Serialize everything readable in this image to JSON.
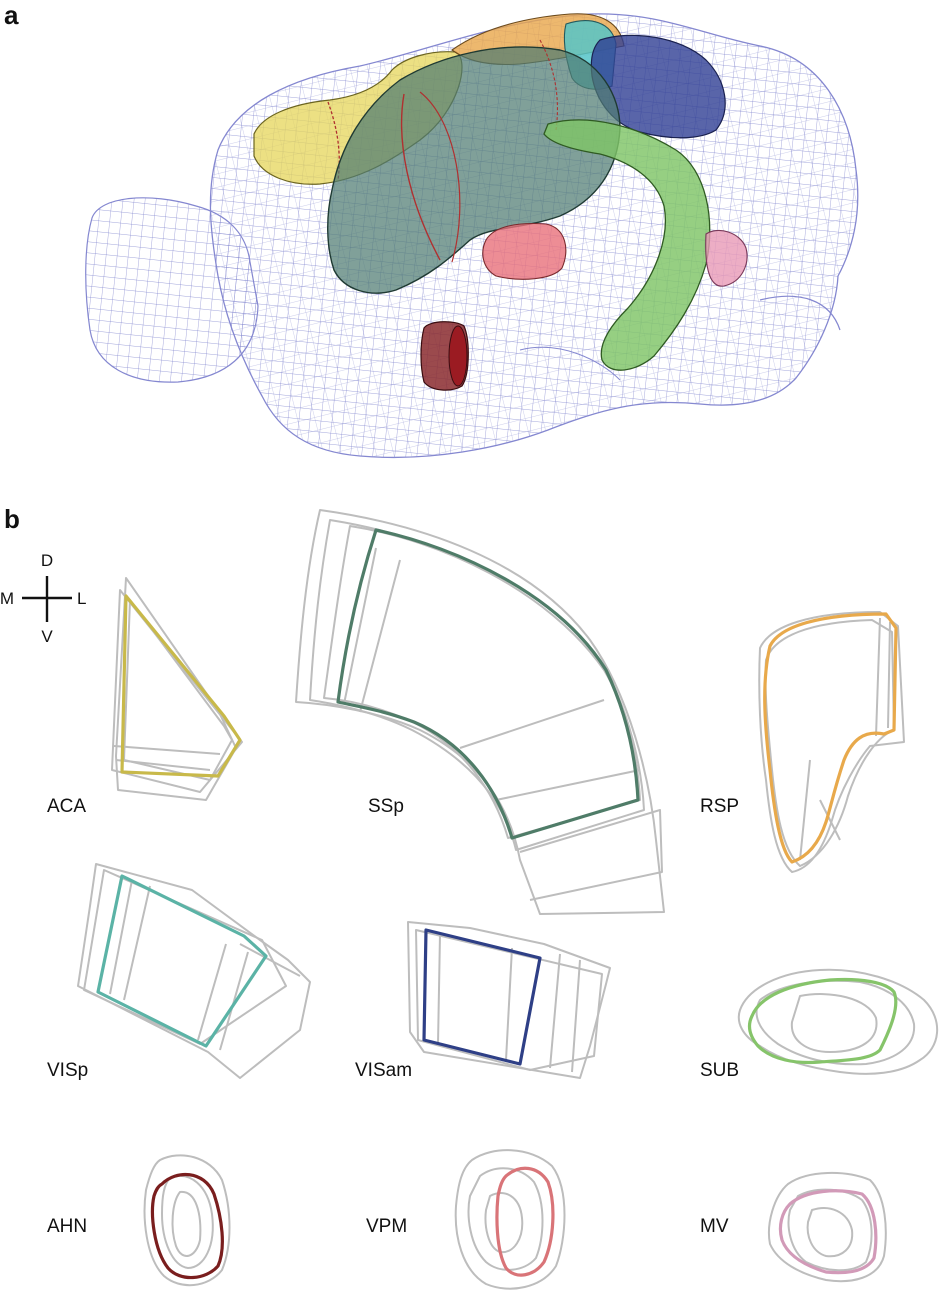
{
  "panels": {
    "a": "a",
    "b": "b"
  },
  "compass": {
    "dorsal": "D",
    "ventral": "V",
    "medial": "M",
    "lateral": "L"
  },
  "regions": [
    {
      "key": "aca",
      "label": "ACA",
      "color": "#c8b94a"
    },
    {
      "key": "ssp",
      "label": "SSp",
      "color": "#4f7c68"
    },
    {
      "key": "rsp",
      "label": "RSP",
      "color": "#e8a94b"
    },
    {
      "key": "visp",
      "label": "VISp",
      "color": "#5bb3a6"
    },
    {
      "key": "visam",
      "label": "VISam",
      "color": "#2e3f86"
    },
    {
      "key": "sub",
      "label": "SUB",
      "color": "#86c46a"
    },
    {
      "key": "ahn",
      "label": "AHN",
      "color": "#7a1e1e"
    },
    {
      "key": "vpm",
      "label": "VPM",
      "color": "#d97478"
    },
    {
      "key": "mv",
      "label": "MV",
      "color": "#d29ab8"
    }
  ],
  "colors": {
    "mesh": "#7b7fc9",
    "outline_gray": "#bdbdbd",
    "region_boundary": "#9b2226"
  }
}
